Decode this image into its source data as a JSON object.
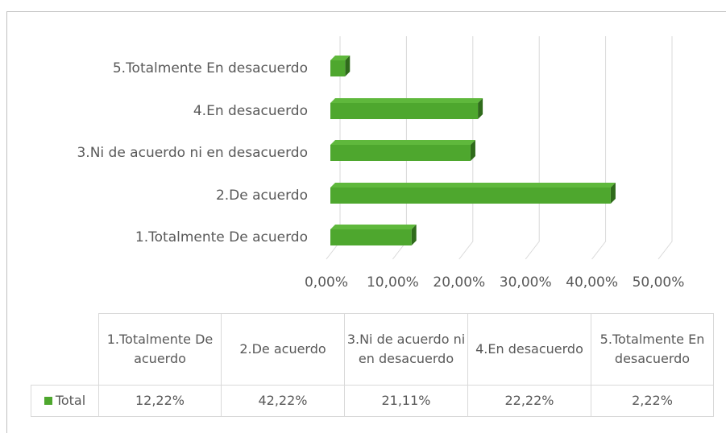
{
  "chart_data": {
    "type": "bar",
    "orientation": "horizontal",
    "categories": [
      "1.Totalmente De acuerdo",
      "2.De acuerdo",
      "3.Ni de acuerdo ni en desacuerdo",
      "4.En desacuerdo",
      "5.Totalmente En desacuerdo"
    ],
    "series": [
      {
        "name": "Total",
        "color": "#4ea72e",
        "values": [
          12.22,
          42.22,
          21.11,
          22.22,
          2.22
        ],
        "value_labels": [
          "12,22%",
          "42,22%",
          "21,11%",
          "22,22%",
          "2,22%"
        ]
      }
    ],
    "xlim": [
      0,
      50
    ],
    "xticks": [
      {
        "value": 0,
        "label": "0,00%"
      },
      {
        "value": 10,
        "label": "10,00%"
      },
      {
        "value": 20,
        "label": "20,00%"
      },
      {
        "value": 30,
        "label": "30,00%"
      },
      {
        "value": 40,
        "label": "40,00%"
      },
      {
        "value": 50,
        "label": "50,00%"
      }
    ],
    "grid": true,
    "data_table": true
  }
}
